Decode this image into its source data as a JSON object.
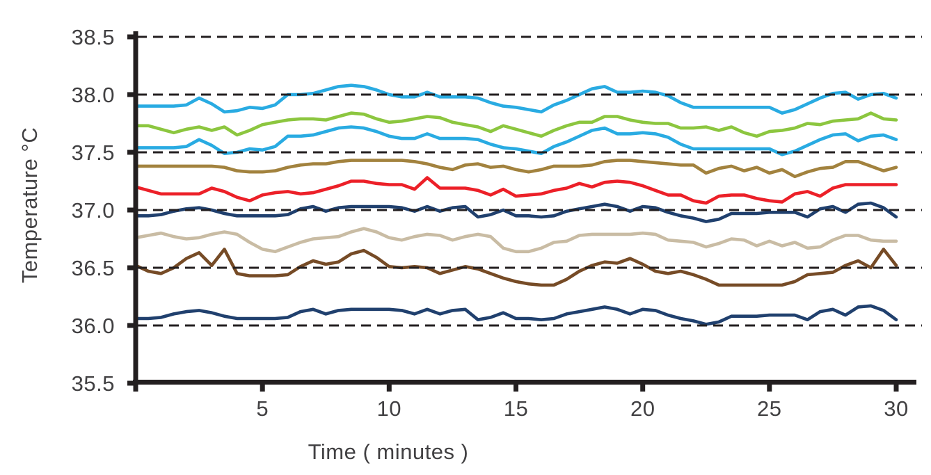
{
  "page": {
    "background": "#ffffff"
  },
  "chart_data": {
    "type": "line",
    "title": "",
    "xlabel": "Time ( minutes )",
    "ylabel": "Temperature °C",
    "xlim": [
      0,
      30.8
    ],
    "ylim": [
      35.5,
      38.55
    ],
    "x_start": 0,
    "x_step": 0.5,
    "xticks": [
      {
        "label": "5",
        "value": 5
      },
      {
        "label": "10",
        "value": 10
      },
      {
        "label": "15",
        "value": 15
      },
      {
        "label": "20",
        "value": 20
      },
      {
        "label": "25",
        "value": 25
      },
      {
        "label": "30",
        "value": 30
      }
    ],
    "xtick_marks": [
      0,
      5,
      10,
      15,
      20,
      25,
      30
    ],
    "yticks": [
      {
        "label": "38.5",
        "value": 38.5
      },
      {
        "label": "38.0",
        "value": 38.0
      },
      {
        "label": "37.5",
        "value": 37.5
      },
      {
        "label": "37.0",
        "value": 37.0
      },
      {
        "label": "36.5",
        "value": 36.5
      },
      {
        "label": "36.0",
        "value": 36.0
      },
      {
        "label": "35.5",
        "value": 35.5
      }
    ],
    "gridlines": {
      "values": [
        38.5,
        38.0,
        37.5,
        37.0,
        36.5,
        36.0
      ],
      "style": "dashed",
      "color": "#231f20"
    },
    "axis_color": "#231f20",
    "tick_label_color": "#414042",
    "legend": "none",
    "series": [
      {
        "name": "cyan-upper",
        "color": "#29abe2",
        "values": [
          37.9,
          37.9,
          37.9,
          37.9,
          37.91,
          37.97,
          37.92,
          37.85,
          37.86,
          37.89,
          37.88,
          37.91,
          38.0,
          38.0,
          38.01,
          38.04,
          38.07,
          38.08,
          38.07,
          38.04,
          38.0,
          37.98,
          37.98,
          38.02,
          37.98,
          37.98,
          37.98,
          37.97,
          37.93,
          37.9,
          37.89,
          37.87,
          37.85,
          37.91,
          37.95,
          38.0,
          38.05,
          38.07,
          38.02,
          38.02,
          38.03,
          38.02,
          37.99,
          37.93,
          37.89,
          37.89,
          37.89,
          37.89,
          37.89,
          37.89,
          37.89,
          37.84,
          37.87,
          37.92,
          37.97,
          38.01,
          38.02,
          37.96,
          38.0,
          38.01,
          37.97
        ]
      },
      {
        "name": "green",
        "color": "#8cc63f",
        "values": [
          37.73,
          37.73,
          37.7,
          37.67,
          37.7,
          37.72,
          37.69,
          37.72,
          37.65,
          37.69,
          37.74,
          37.76,
          37.78,
          37.79,
          37.79,
          37.78,
          37.81,
          37.84,
          37.83,
          37.79,
          37.76,
          37.77,
          37.79,
          37.81,
          37.8,
          37.76,
          37.74,
          37.72,
          37.68,
          37.73,
          37.7,
          37.67,
          37.64,
          37.69,
          37.73,
          37.76,
          37.76,
          37.81,
          37.81,
          37.78,
          37.76,
          37.75,
          37.75,
          37.71,
          37.71,
          37.72,
          37.69,
          37.72,
          37.67,
          37.64,
          37.68,
          37.69,
          37.71,
          37.75,
          37.74,
          37.77,
          37.78,
          37.79,
          37.84,
          37.79,
          37.78
        ]
      },
      {
        "name": "cyan-lower",
        "color": "#29abe2",
        "values": [
          37.54,
          37.54,
          37.54,
          37.54,
          37.55,
          37.61,
          37.56,
          37.49,
          37.5,
          37.53,
          37.52,
          37.55,
          37.64,
          37.64,
          37.65,
          37.68,
          37.71,
          37.72,
          37.71,
          37.68,
          37.64,
          37.62,
          37.62,
          37.66,
          37.62,
          37.62,
          37.62,
          37.61,
          37.57,
          37.54,
          37.53,
          37.51,
          37.49,
          37.55,
          37.59,
          37.64,
          37.69,
          37.71,
          37.66,
          37.66,
          37.67,
          37.66,
          37.63,
          37.57,
          37.53,
          37.53,
          37.53,
          37.53,
          37.53,
          37.53,
          37.53,
          37.48,
          37.51,
          37.56,
          37.61,
          37.65,
          37.66,
          37.6,
          37.64,
          37.65,
          37.61
        ]
      },
      {
        "name": "gold-tan",
        "color": "#a2823e",
        "values": [
          37.38,
          37.38,
          37.38,
          37.38,
          37.38,
          37.38,
          37.38,
          37.37,
          37.34,
          37.33,
          37.33,
          37.34,
          37.37,
          37.39,
          37.4,
          37.4,
          37.42,
          37.43,
          37.43,
          37.43,
          37.43,
          37.43,
          37.42,
          37.4,
          37.37,
          37.35,
          37.39,
          37.4,
          37.37,
          37.38,
          37.35,
          37.33,
          37.35,
          37.38,
          37.38,
          37.38,
          37.39,
          37.42,
          37.43,
          37.43,
          37.42,
          37.41,
          37.4,
          37.39,
          37.39,
          37.32,
          37.36,
          37.38,
          37.34,
          37.37,
          37.32,
          37.35,
          37.29,
          37.33,
          37.36,
          37.37,
          37.42,
          37.42,
          37.38,
          37.34,
          37.37
        ]
      },
      {
        "name": "red",
        "color": "#ec2028",
        "values": [
          37.2,
          37.17,
          37.14,
          37.14,
          37.14,
          37.14,
          37.19,
          37.16,
          37.11,
          37.08,
          37.13,
          37.15,
          37.16,
          37.14,
          37.15,
          37.18,
          37.21,
          37.25,
          37.25,
          37.23,
          37.22,
          37.22,
          37.18,
          37.28,
          37.19,
          37.19,
          37.19,
          37.17,
          37.13,
          37.18,
          37.12,
          37.13,
          37.14,
          37.17,
          37.19,
          37.23,
          37.2,
          37.24,
          37.25,
          37.24,
          37.21,
          37.17,
          37.13,
          37.13,
          37.08,
          37.06,
          37.12,
          37.13,
          37.13,
          37.1,
          37.08,
          37.07,
          37.14,
          37.16,
          37.12,
          37.19,
          37.22,
          37.22,
          37.22,
          37.22,
          37.22
        ]
      },
      {
        "name": "navy-upper",
        "color": "#20406e",
        "values": [
          36.95,
          36.95,
          36.96,
          36.99,
          37.01,
          37.02,
          37.0,
          36.97,
          36.95,
          36.95,
          36.95,
          36.95,
          36.96,
          37.01,
          37.03,
          36.99,
          37.02,
          37.03,
          37.03,
          37.03,
          37.03,
          37.02,
          36.99,
          37.03,
          36.99,
          37.02,
          37.03,
          36.94,
          36.96,
          37.0,
          36.95,
          36.95,
          36.94,
          36.95,
          36.99,
          37.01,
          37.03,
          37.05,
          37.03,
          36.99,
          37.03,
          37.02,
          36.98,
          36.95,
          36.93,
          36.9,
          36.92,
          36.97,
          36.97,
          36.97,
          36.98,
          36.98,
          36.98,
          36.94,
          37.01,
          37.03,
          36.98,
          37.05,
          37.06,
          37.02,
          36.94
        ]
      },
      {
        "name": "beige",
        "color": "#c9bca4",
        "values": [
          36.76,
          36.78,
          36.8,
          36.77,
          36.75,
          36.76,
          36.79,
          36.81,
          36.79,
          36.72,
          36.66,
          36.64,
          36.68,
          36.72,
          36.75,
          36.76,
          36.77,
          36.81,
          36.84,
          36.81,
          36.76,
          36.74,
          36.77,
          36.79,
          36.78,
          36.74,
          36.77,
          36.79,
          36.77,
          36.67,
          36.64,
          36.64,
          36.67,
          36.72,
          36.73,
          36.78,
          36.79,
          36.79,
          36.79,
          36.79,
          36.8,
          36.79,
          36.74,
          36.73,
          36.72,
          36.68,
          36.71,
          36.75,
          36.74,
          36.69,
          36.73,
          36.69,
          36.72,
          36.67,
          36.68,
          36.74,
          36.78,
          36.78,
          36.74,
          36.73,
          36.73
        ]
      },
      {
        "name": "dark-brown",
        "color": "#764b26",
        "values": [
          36.52,
          36.47,
          36.45,
          36.5,
          36.58,
          36.63,
          36.52,
          36.66,
          36.45,
          36.43,
          36.43,
          36.43,
          36.44,
          36.51,
          36.56,
          36.53,
          36.55,
          36.62,
          36.65,
          36.59,
          36.51,
          36.5,
          36.51,
          36.5,
          36.45,
          36.48,
          36.51,
          36.49,
          36.45,
          36.41,
          36.38,
          36.36,
          36.35,
          36.35,
          36.4,
          36.47,
          36.52,
          36.55,
          36.54,
          36.58,
          36.53,
          36.47,
          36.45,
          36.47,
          36.44,
          36.4,
          36.35,
          36.35,
          36.35,
          36.35,
          36.35,
          36.35,
          36.38,
          36.44,
          36.45,
          36.46,
          36.52,
          36.56,
          36.5,
          36.66,
          36.52
        ]
      },
      {
        "name": "navy-lower",
        "color": "#20406e",
        "values": [
          36.06,
          36.06,
          36.07,
          36.1,
          36.12,
          36.13,
          36.11,
          36.08,
          36.06,
          36.06,
          36.06,
          36.06,
          36.07,
          36.12,
          36.14,
          36.1,
          36.13,
          36.14,
          36.14,
          36.14,
          36.14,
          36.13,
          36.1,
          36.14,
          36.1,
          36.13,
          36.14,
          36.05,
          36.07,
          36.11,
          36.06,
          36.06,
          36.05,
          36.06,
          36.1,
          36.12,
          36.14,
          36.16,
          36.14,
          36.1,
          36.14,
          36.13,
          36.09,
          36.06,
          36.04,
          36.01,
          36.03,
          36.08,
          36.08,
          36.08,
          36.09,
          36.09,
          36.09,
          36.05,
          36.12,
          36.14,
          36.09,
          36.16,
          36.17,
          36.13,
          36.05
        ]
      }
    ]
  }
}
